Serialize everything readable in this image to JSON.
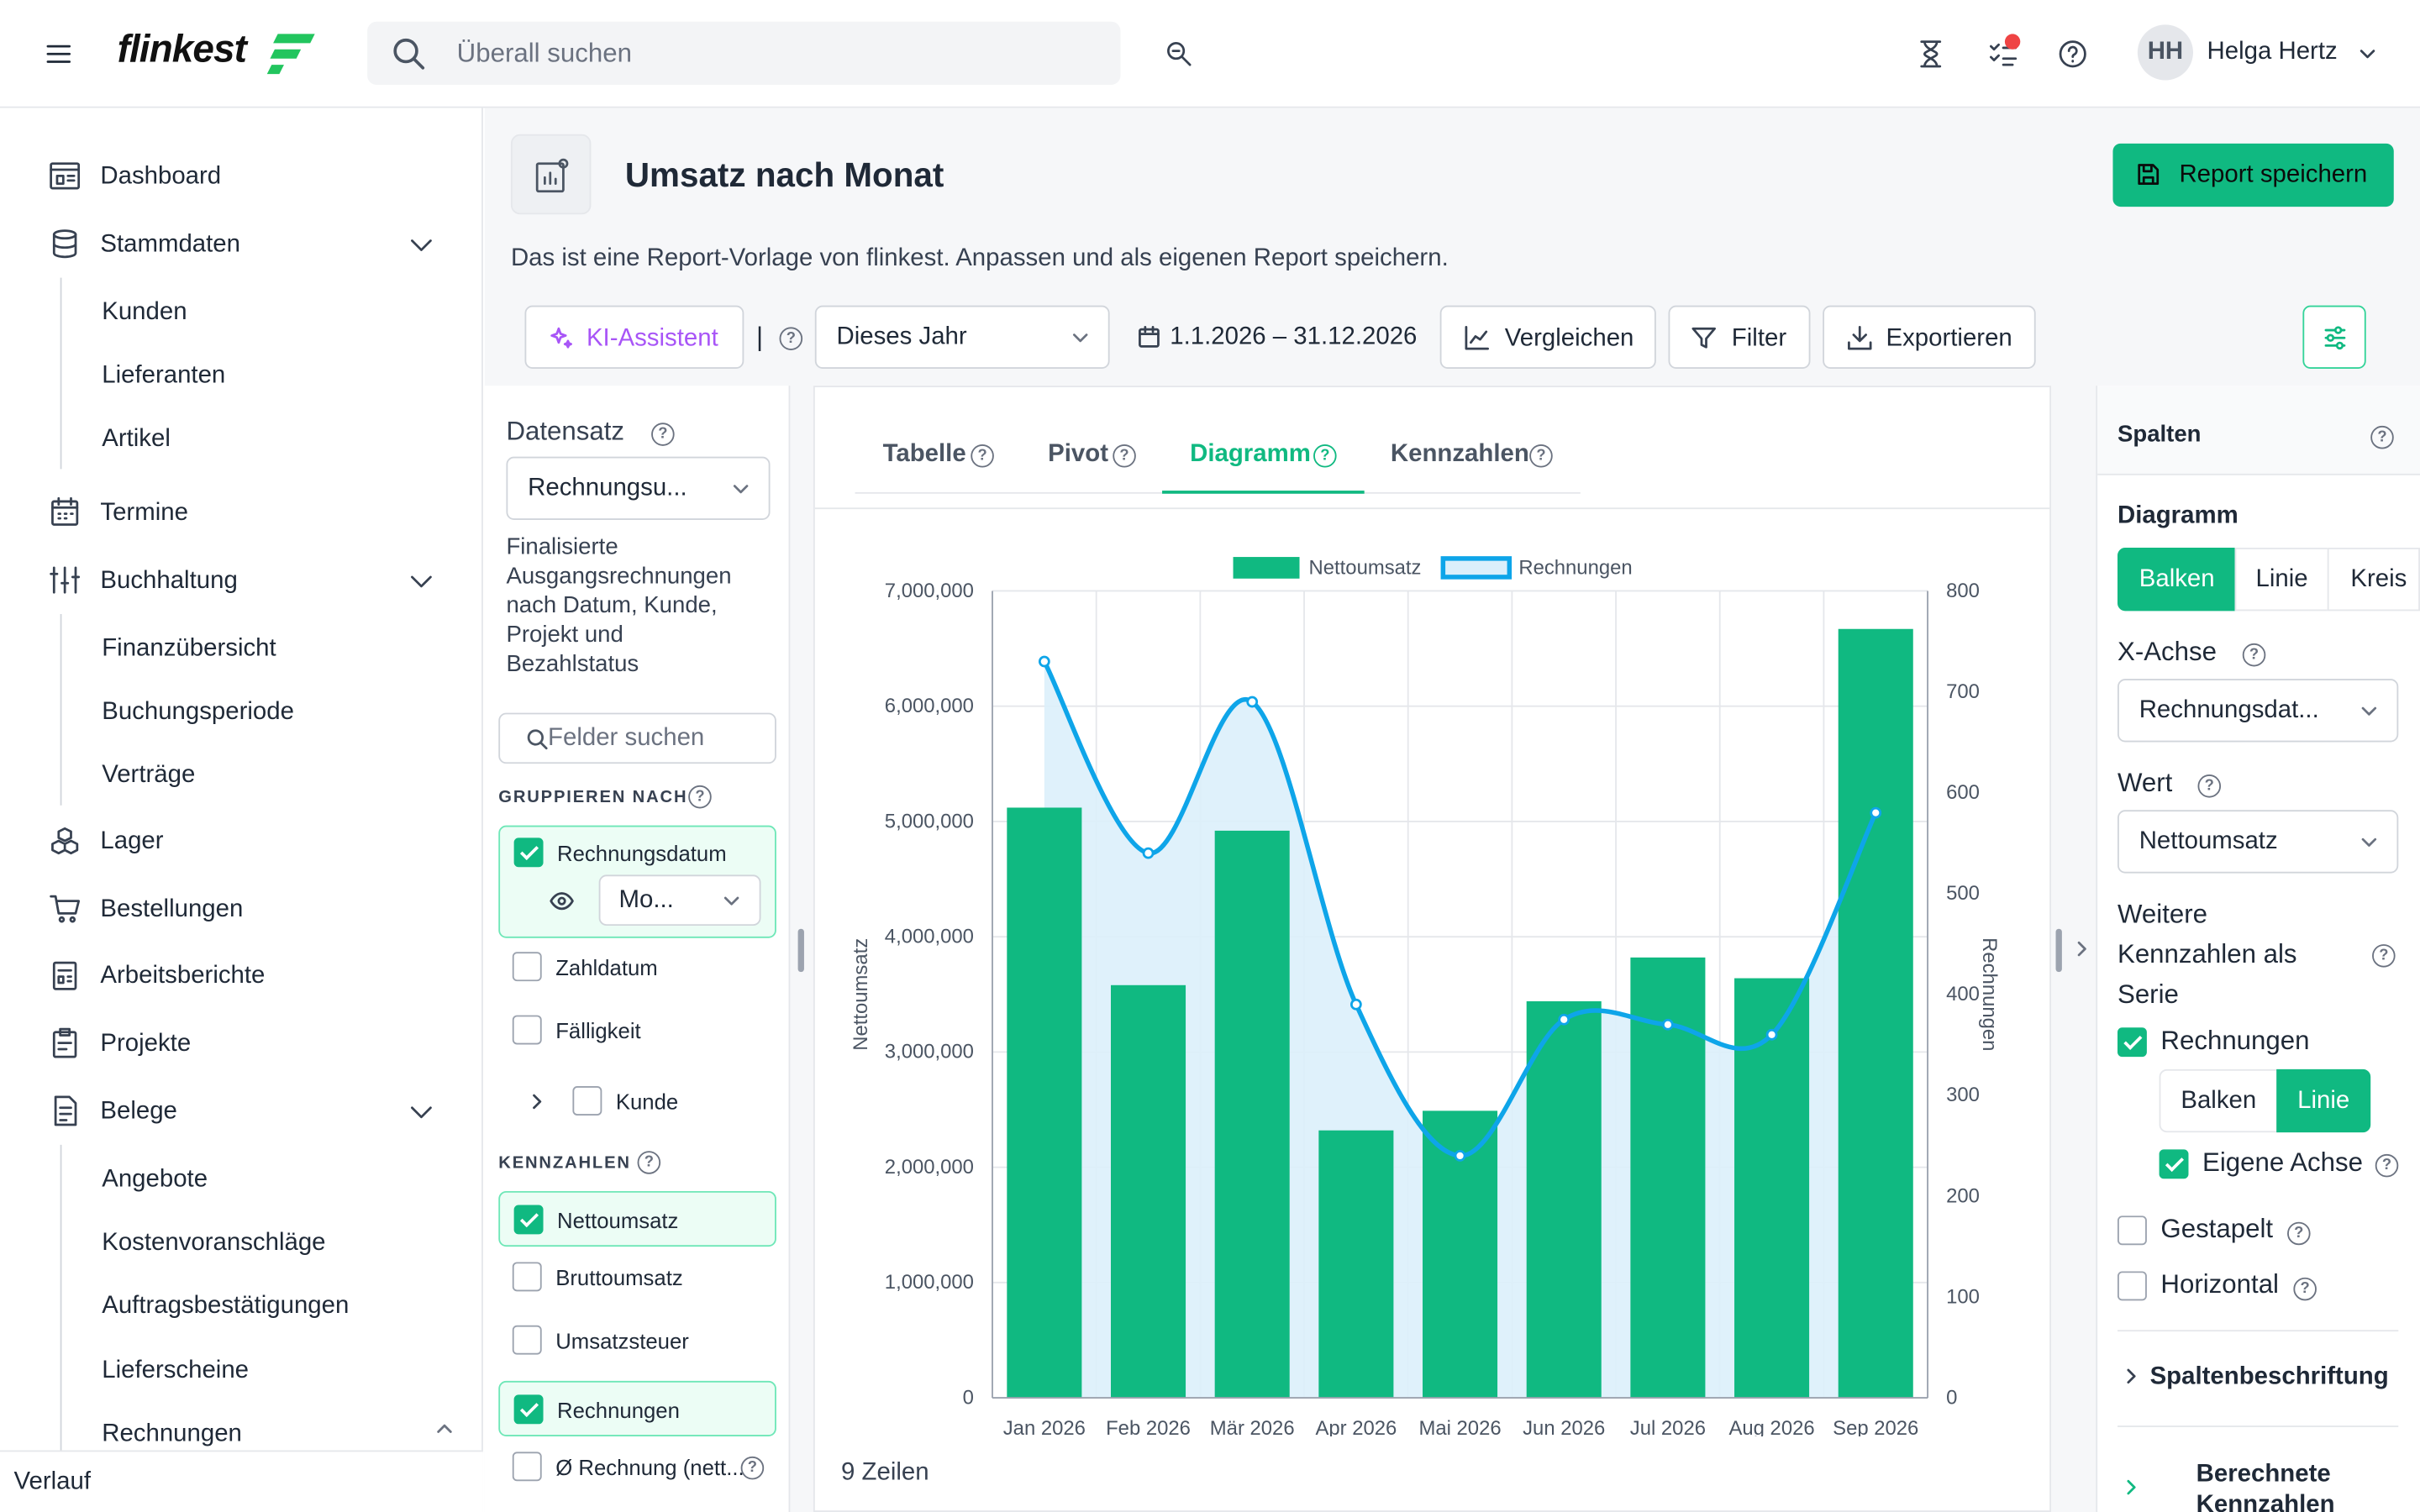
{
  "topbar": {
    "logo": "flinkest",
    "search_placeholder": "Überall suchen",
    "user_initials": "HH",
    "user_name": "Helga Hertz"
  },
  "sidebar": {
    "items": [
      {
        "label": "Dashboard",
        "icon": "dashboard-icon"
      },
      {
        "label": "Stammdaten",
        "icon": "database-icon",
        "expanded": true
      },
      {
        "label": "Kunden"
      },
      {
        "label": "Lieferanten"
      },
      {
        "label": "Artikel"
      },
      {
        "label": "Termine",
        "icon": "calendar-icon"
      },
      {
        "label": "Buchhaltung",
        "icon": "accounting-icon",
        "expanded": true
      },
      {
        "label": "Finanzübersicht"
      },
      {
        "label": "Buchungsperiode"
      },
      {
        "label": "Verträge"
      },
      {
        "label": "Lager",
        "icon": "boxes-icon"
      },
      {
        "label": "Bestellungen",
        "icon": "cart-icon"
      },
      {
        "label": "Arbeitsberichte",
        "icon": "report-icon"
      },
      {
        "label": "Projekte",
        "icon": "clipboard-icon"
      },
      {
        "label": "Belege",
        "icon": "document-icon",
        "expanded": true
      },
      {
        "label": "Angebote"
      },
      {
        "label": "Kostenvoranschläge"
      },
      {
        "label": "Auftragsbestätigungen"
      },
      {
        "label": "Lieferscheine"
      },
      {
        "label": "Rechnungen"
      }
    ],
    "footer": "Verlauf"
  },
  "report": {
    "title": "Umsatz nach Monat",
    "description": "Das ist eine Report-Vorlage von flinkest. Anpassen und als eigenen Report speichern.",
    "save_label": "Report speichern"
  },
  "toolbar": {
    "ai_label": "KI-Assistent",
    "separator": "|",
    "period": "Dieses Jahr",
    "date_range": "1.1.2026 – 31.12.2026",
    "compare_label": "Vergleichen",
    "filter_label": "Filter",
    "export_label": "Exportieren"
  },
  "dataset": {
    "label": "Datensatz",
    "value": "Rechnungsu...",
    "description": "Finalisierte Ausgangsrechnungen nach Datum, Kunde, Projekt und Bezahlstatus",
    "field_search_placeholder": "Felder suchen",
    "group_label": "GRUPPIEREN NACH",
    "group_fields": [
      {
        "label": "Rechnungsdatum",
        "checked": true
      },
      {
        "label": "Zahldatum",
        "checked": false
      },
      {
        "label": "Fälligkeit",
        "checked": false
      },
      {
        "label": "Kunde",
        "checked": false
      }
    ],
    "granularity": "Mo...",
    "metrics_label": "KENNZAHLEN",
    "metric_fields": [
      {
        "label": "Nettoumsatz",
        "checked": true
      },
      {
        "label": "Bruttoumsatz",
        "checked": false
      },
      {
        "label": "Umsatzsteuer",
        "checked": false
      },
      {
        "label": "Rechnungen",
        "checked": true
      },
      {
        "label": "Ø Rechnung (nett...",
        "checked": false
      }
    ]
  },
  "view_tabs": [
    {
      "label": "Tabelle",
      "active": false
    },
    {
      "label": "Pivot",
      "active": false
    },
    {
      "label": "Diagramm",
      "active": true
    },
    {
      "label": "Kennzahlen",
      "active": false
    }
  ],
  "row_count": "9 Zeilen",
  "chart_data": {
    "type": "bar",
    "categories": [
      "Jan 2026",
      "Feb 2026",
      "Mär 2026",
      "Apr 2026",
      "Mai 2026",
      "Jun 2026",
      "Jul 2026",
      "Aug 2026",
      "Sep 2026"
    ],
    "series": [
      {
        "name": "Nettoumsatz",
        "type": "bar",
        "axis": "left",
        "color": "#10b981",
        "values": [
          5120000,
          3580000,
          4920000,
          2320000,
          2490000,
          3440000,
          3820000,
          3640000,
          6670000
        ]
      },
      {
        "name": "Rechnungen",
        "type": "line",
        "axis": "right",
        "color": "#0ea5e9",
        "fill": "#dbeffb",
        "values": [
          730,
          540,
          690,
          390,
          240,
          375,
          370,
          360,
          580
        ]
      }
    ],
    "ylabel": "Nettoumsatz",
    "y2label": "Rechnungen",
    "ylim": [
      0,
      7000000
    ],
    "y2lim": [
      0,
      800
    ],
    "yticks": [
      "0",
      "1,000,000",
      "2,000,000",
      "3,000,000",
      "4,000,000",
      "5,000,000",
      "6,000,000",
      "7,000,000"
    ],
    "y2ticks": [
      "0",
      "100",
      "200",
      "300",
      "400",
      "500",
      "600",
      "700",
      "800"
    ],
    "legend": "top-center",
    "grid": true
  },
  "columns_panel": {
    "title": "Spalten",
    "chart_label": "Diagramm",
    "chart_types": [
      {
        "label": "Balken",
        "active": true
      },
      {
        "label": "Linie",
        "active": false
      },
      {
        "label": "Kreis",
        "active": false
      }
    ],
    "x_axis_label": "X-Achse",
    "x_axis_value": "Rechnungsdat...",
    "value_label": "Wert",
    "value_value": "Nettoumsatz",
    "more_series_label": "Weitere Kennzahlen als Serie",
    "series_option": "Rechnungen",
    "series_types": [
      {
        "label": "Balken",
        "active": false
      },
      {
        "label": "Linie",
        "active": true
      }
    ],
    "own_axis_label": "Eigene Achse",
    "stacked_label": "Gestapelt",
    "horizontal_label": "Horizontal",
    "column_labels": "Spaltenbeschriftung",
    "calculated_metrics": "Berechnete Kennzahlen"
  }
}
